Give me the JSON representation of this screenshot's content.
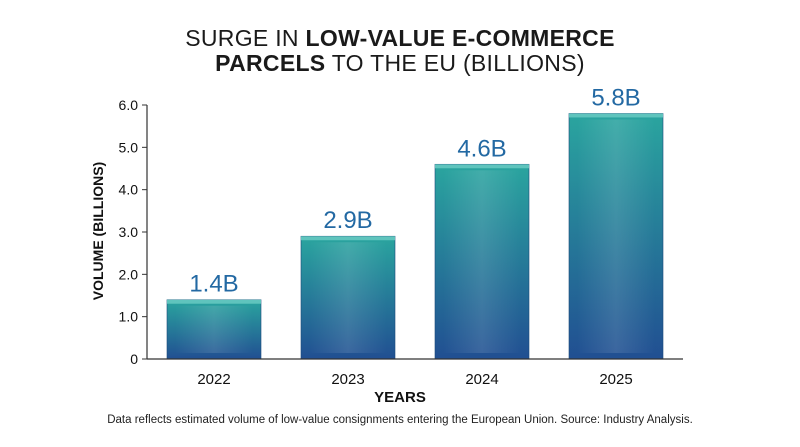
{
  "header": {
    "title_line1_regular": "SURGE IN ",
    "title_line1_bold": "LOW-VALUE E-COMMERCE",
    "title_line2_bold": "PARCELS",
    "title_line2_regular": " TO THE EU (BILLIONS)"
  },
  "chart_data": {
    "type": "bar",
    "title": "SURGE IN LOW-VALUE E-COMMERCE PARCELS TO THE EU (BILLIONS)",
    "categories": [
      "2022",
      "2023",
      "2024",
      "2025"
    ],
    "values": [
      1.4,
      2.9,
      4.6,
      5.8
    ],
    "data_labels": [
      "1.4B",
      "2.9B",
      "4.6B",
      "5.8B"
    ],
    "xlabel": "YEARS",
    "ylabel": "VOLUME (BILLIONS)",
    "ylim": [
      0,
      6
    ],
    "yticks": [
      0,
      1,
      2,
      3,
      4,
      5,
      6
    ],
    "ytick_labels": [
      "0",
      "1.0",
      "2.0",
      "3.0",
      "4.0",
      "5.0",
      "6.0"
    ],
    "grid": false,
    "colors": {
      "bar_top": "#2aa59f",
      "bar_bottom": "#214f92",
      "bar_cap": "#5fc4bd",
      "label": "#2369a3",
      "axis": "#333333"
    }
  },
  "footnote": "Data reflects estimated volume of low-value consignments entering the European Union. Source: Industry Analysis."
}
